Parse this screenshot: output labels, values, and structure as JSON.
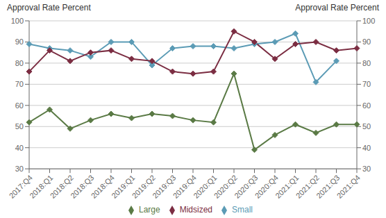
{
  "chart_data": {
    "type": "line",
    "ylabel": "Approval Rate Percent",
    "y2label": "Approval Rate Percent",
    "categories": [
      "2017:Q4",
      "2018:Q1",
      "2018:Q2",
      "2018:Q3",
      "2018:Q4",
      "2019:Q1",
      "2019:Q2",
      "2019:Q3",
      "2019:Q4",
      "2020:Q1",
      "2020:Q2",
      "2020:Q3",
      "2020:Q4",
      "2021:Q1",
      "2021:Q2",
      "2021:Q3",
      "2021:Q4"
    ],
    "series": [
      {
        "name": "Small",
        "color": "#5b9bb5",
        "values": [
          89,
          87,
          86,
          83,
          90,
          90,
          79,
          87,
          88,
          88,
          87,
          89,
          90,
          94,
          71,
          81,
          null
        ]
      },
      {
        "name": "Midsized",
        "color": "#7b2d42",
        "values": [
          76,
          86,
          81,
          85,
          86,
          82,
          81,
          76,
          75,
          76,
          95,
          90,
          82,
          89,
          90,
          86,
          87
        ]
      },
      {
        "name": "Large",
        "color": "#5a7a45",
        "values": [
          52,
          58,
          49,
          53,
          56,
          54,
          56,
          55,
          53,
          52,
          75,
          39,
          46,
          51,
          47,
          51,
          51
        ]
      }
    ],
    "marker": "diamond",
    "ylim": [
      30,
      100
    ],
    "yticks": [
      30,
      40,
      50,
      60,
      70,
      80,
      90,
      100
    ],
    "y2lim": [
      30,
      100
    ],
    "y2ticks": [
      30,
      40,
      50,
      60,
      70,
      80,
      90,
      100
    ],
    "grid": true,
    "legend": "bottom"
  }
}
